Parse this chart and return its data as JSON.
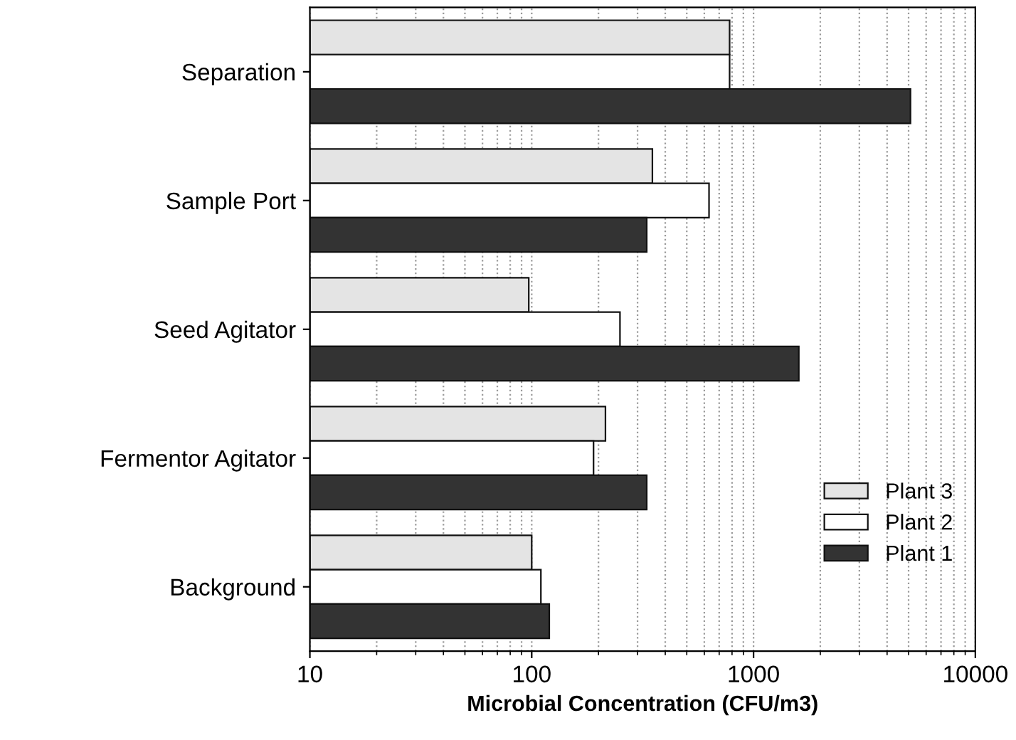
{
  "chart_data": {
    "type": "bar",
    "orientation": "horizontal",
    "log": "x",
    "xlabel": "Microbial Concentration (CFU/m3)",
    "categories": [
      "Separation",
      "Sample Port",
      "Seed Agitator",
      "Fermentor Agitator",
      "Background"
    ],
    "series": [
      {
        "name": "Plant 3",
        "color": "#e4e4e4",
        "values": [
          780,
          350,
          97,
          215,
          100
        ]
      },
      {
        "name": "Plant 2",
        "color": "#ffffff",
        "values": [
          780,
          630,
          250,
          190,
          110
        ]
      },
      {
        "name": "Plant 1",
        "color": "#333333",
        "values": [
          5100,
          330,
          1600,
          330,
          120
        ]
      }
    ],
    "xlim": [
      10,
      10000
    ],
    "xticks": [
      10,
      100,
      1000,
      10000
    ],
    "grid": "x",
    "legend": "bottom right"
  }
}
